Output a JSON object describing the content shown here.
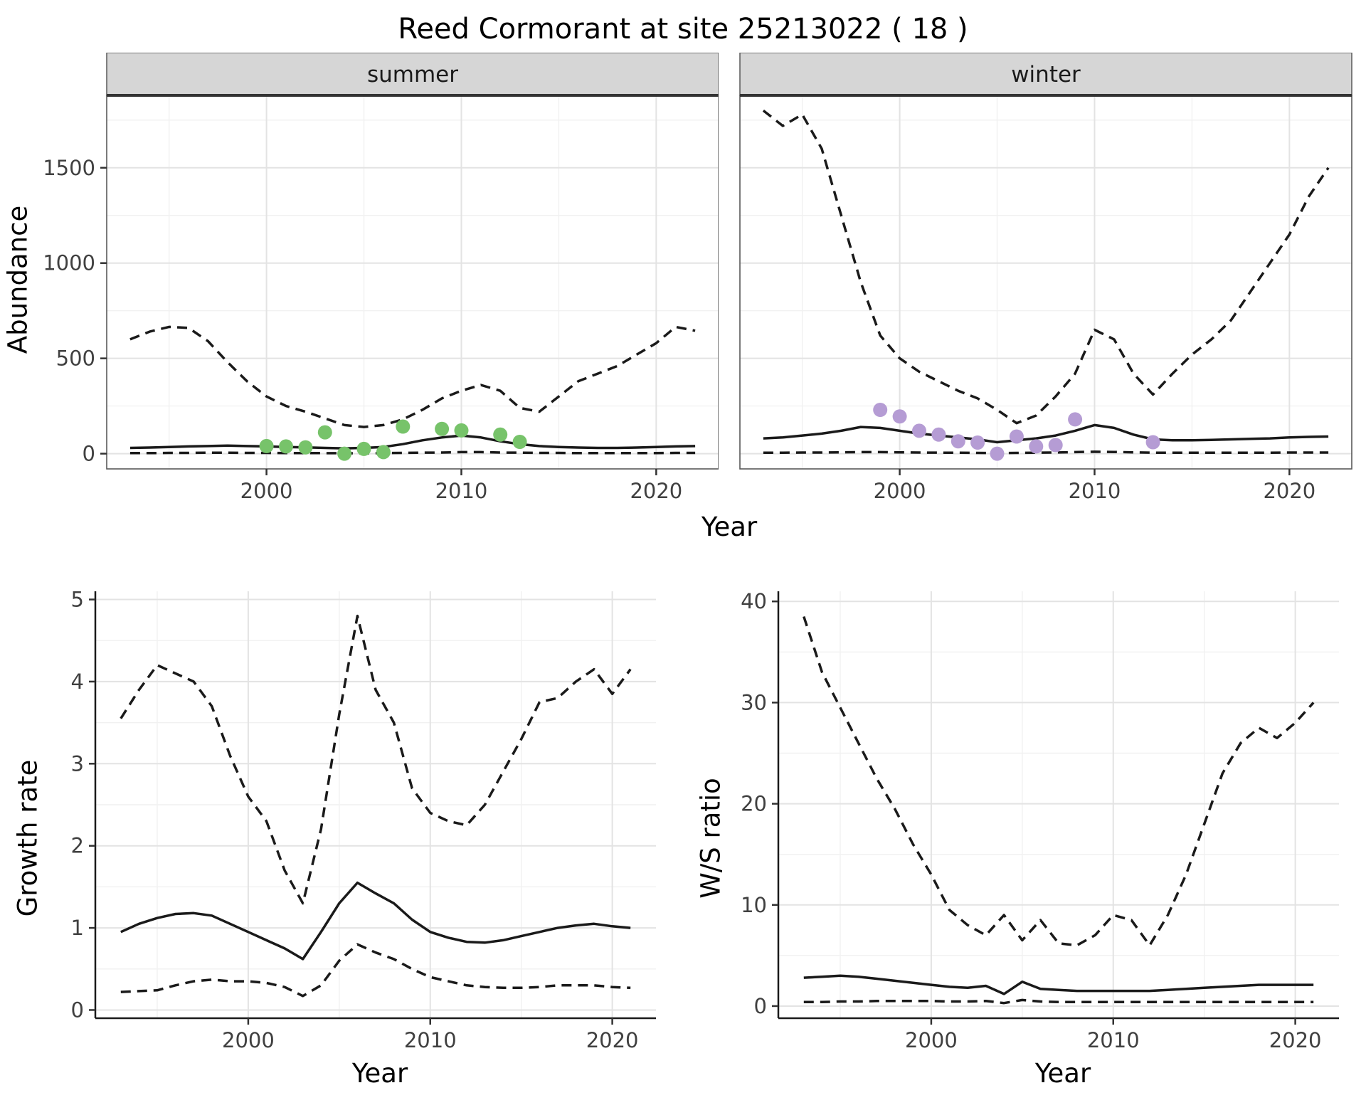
{
  "title": "Reed Cormorant at site 25213022 ( 18 )",
  "colors": {
    "background": "#ffffff",
    "line": "#1a1a1a",
    "summer_points": "#77c36a",
    "winter_points": "#b59cd4",
    "strip_bg": "#d6d6d6",
    "strip_border": "#595959",
    "strip_underline": "#333333",
    "panel_border": "#595959",
    "axis_line": "#1a1a1a",
    "grid_major": "#e3e3e3",
    "grid_minor": "#f1f1f1",
    "tick_mark": "#333333",
    "tick_label": "#404040"
  },
  "chart_data": [
    {
      "id": "abundance-summer",
      "type": "line",
      "facet_label": "summer",
      "xlabel": "Year",
      "ylabel": "Abundance",
      "xlim": [
        1991.8,
        2023.2
      ],
      "ylim": [
        -80,
        1880
      ],
      "xticks": [
        2000,
        2010,
        2020
      ],
      "yticks": [
        0,
        500,
        1000,
        1500
      ],
      "grid": true,
      "x": [
        1993,
        1994,
        1995,
        1996,
        1997,
        1998,
        1999,
        2000,
        2001,
        2002,
        2003,
        2004,
        2005,
        2006,
        2007,
        2008,
        2009,
        2010,
        2011,
        2012,
        2013,
        2014,
        2015,
        2016,
        2017,
        2018,
        2019,
        2020,
        2021,
        2022
      ],
      "series": [
        {
          "name": "upper-ci",
          "style": "dashed",
          "y": [
            600,
            640,
            665,
            660,
            590,
            480,
            380,
            300,
            250,
            220,
            185,
            150,
            140,
            150,
            180,
            230,
            290,
            330,
            360,
            330,
            240,
            220,
            300,
            380,
            420,
            460,
            520,
            580,
            665,
            645
          ]
        },
        {
          "name": "median",
          "style": "solid",
          "y": [
            30,
            32,
            35,
            38,
            40,
            42,
            40,
            38,
            35,
            33,
            30,
            28,
            30,
            35,
            50,
            70,
            85,
            95,
            85,
            65,
            50,
            40,
            35,
            32,
            30,
            30,
            32,
            35,
            38,
            40
          ]
        },
        {
          "name": "lower-ci",
          "style": "dashed",
          "y": [
            3,
            3,
            4,
            4,
            5,
            5,
            4,
            4,
            3,
            3,
            3,
            2,
            2,
            3,
            4,
            5,
            6,
            8,
            8,
            6,
            5,
            4,
            4,
            3,
            3,
            3,
            3,
            3,
            4,
            4
          ]
        }
      ],
      "points": {
        "name": "observed-counts",
        "color_key": "summer_points",
        "x": [
          2000,
          2001,
          2002,
          2003,
          2004,
          2005,
          2006,
          2007,
          2009,
          2010,
          2012,
          2013
        ],
        "y": [
          40,
          38,
          33,
          112,
          0,
          25,
          8,
          142,
          130,
          122,
          100,
          62
        ]
      }
    },
    {
      "id": "abundance-winter",
      "type": "line",
      "facet_label": "winter",
      "xlabel": "Year",
      "ylabel": "Abundance",
      "xlim": [
        1991.8,
        2023.2
      ],
      "ylim": [
        -80,
        1880
      ],
      "xticks": [
        2000,
        2010,
        2020
      ],
      "yticks": [
        0,
        500,
        1000,
        1500
      ],
      "grid": true,
      "x": [
        1993,
        1994,
        1995,
        1996,
        1997,
        1998,
        1999,
        2000,
        2001,
        2002,
        2003,
        2004,
        2005,
        2006,
        2007,
        2008,
        2009,
        2010,
        2011,
        2012,
        2013,
        2014,
        2015,
        2016,
        2017,
        2018,
        2019,
        2020,
        2021,
        2022
      ],
      "series": [
        {
          "name": "upper-ci",
          "style": "dashed",
          "y": [
            1800,
            1720,
            1780,
            1600,
            1250,
            900,
            620,
            500,
            430,
            380,
            330,
            290,
            230,
            160,
            200,
            300,
            420,
            650,
            600,
            420,
            310,
            420,
            520,
            600,
            700,
            850,
            1000,
            1150,
            1350,
            1500
          ]
        },
        {
          "name": "median",
          "style": "solid",
          "y": [
            80,
            85,
            95,
            105,
            120,
            140,
            135,
            120,
            105,
            95,
            85,
            75,
            60,
            70,
            80,
            95,
            120,
            150,
            135,
            100,
            75,
            70,
            70,
            72,
            75,
            78,
            80,
            85,
            88,
            90
          ]
        },
        {
          "name": "lower-ci",
          "style": "dashed",
          "y": [
            5,
            5,
            6,
            6,
            7,
            8,
            8,
            7,
            6,
            5,
            5,
            4,
            3,
            4,
            5,
            6,
            8,
            10,
            9,
            7,
            5,
            5,
            5,
            5,
            5,
            5,
            5,
            6,
            6,
            6
          ]
        }
      ],
      "points": {
        "name": "observed-counts",
        "color_key": "winter_points",
        "x": [
          1999,
          2000,
          2001,
          2002,
          2003,
          2004,
          2005,
          2006,
          2007,
          2008,
          2009,
          2013
        ],
        "y": [
          230,
          195,
          120,
          100,
          65,
          58,
          0,
          90,
          38,
          45,
          180,
          60
        ]
      }
    },
    {
      "id": "growth-rate",
      "type": "line",
      "xlabel": "Year",
      "ylabel": "Growth rate",
      "xlim": [
        1991.6,
        2022.4
      ],
      "ylim": [
        -0.1,
        5.1
      ],
      "xticks": [
        2000,
        2010,
        2020
      ],
      "yticks": [
        0,
        1,
        2,
        3,
        4,
        5
      ],
      "grid": true,
      "x": [
        1993,
        1994,
        1995,
        1996,
        1997,
        1998,
        1999,
        2000,
        2001,
        2002,
        2003,
        2004,
        2005,
        2006,
        2007,
        2008,
        2009,
        2010,
        2011,
        2012,
        2013,
        2014,
        2015,
        2016,
        2017,
        2018,
        2019,
        2020,
        2021
      ],
      "series": [
        {
          "name": "upper-ci",
          "style": "dashed",
          "y": [
            3.55,
            3.9,
            4.2,
            4.1,
            4.0,
            3.7,
            3.1,
            2.6,
            2.3,
            1.7,
            1.3,
            2.2,
            3.6,
            4.8,
            3.9,
            3.5,
            2.7,
            2.4,
            2.3,
            2.25,
            2.5,
            2.9,
            3.3,
            3.75,
            3.8,
            4.0,
            4.15,
            3.85,
            4.15
          ]
        },
        {
          "name": "median",
          "style": "solid",
          "y": [
            0.95,
            1.05,
            1.12,
            1.17,
            1.18,
            1.15,
            1.05,
            0.95,
            0.85,
            0.75,
            0.62,
            0.95,
            1.3,
            1.55,
            1.42,
            1.3,
            1.1,
            0.95,
            0.88,
            0.83,
            0.82,
            0.85,
            0.9,
            0.95,
            1.0,
            1.03,
            1.05,
            1.02,
            1.0
          ]
        },
        {
          "name": "lower-ci",
          "style": "dashed",
          "y": [
            0.22,
            0.23,
            0.24,
            0.3,
            0.35,
            0.37,
            0.35,
            0.35,
            0.33,
            0.28,
            0.17,
            0.3,
            0.6,
            0.8,
            0.7,
            0.62,
            0.5,
            0.4,
            0.35,
            0.3,
            0.28,
            0.27,
            0.27,
            0.28,
            0.3,
            0.3,
            0.3,
            0.28,
            0.27
          ]
        }
      ]
    },
    {
      "id": "ws-ratio",
      "type": "line",
      "xlabel": "Year",
      "ylabel": "W/S ratio",
      "xlim": [
        1991.6,
        2022.4
      ],
      "ylim": [
        -1.2,
        41
      ],
      "xticks": [
        2000,
        2010,
        2020
      ],
      "yticks": [
        0,
        10,
        20,
        30,
        40
      ],
      "grid": true,
      "x": [
        1993,
        1994,
        1995,
        1996,
        1997,
        1998,
        1999,
        2000,
        2001,
        2002,
        2003,
        2004,
        2005,
        2006,
        2007,
        2008,
        2009,
        2010,
        2011,
        2012,
        2013,
        2014,
        2015,
        2016,
        2017,
        2018,
        2019,
        2020,
        2021
      ],
      "series": [
        {
          "name": "upper-ci",
          "style": "dashed",
          "y": [
            38.5,
            33,
            29.5,
            26,
            22.5,
            19.5,
            16,
            13,
            9.5,
            8,
            7,
            9,
            6.5,
            8.5,
            6.2,
            6,
            7,
            9,
            8.5,
            6,
            9,
            13,
            18,
            23,
            26,
            27.5,
            26.5,
            28,
            30
          ]
        },
        {
          "name": "median",
          "style": "solid",
          "y": [
            2.8,
            2.9,
            3.0,
            2.9,
            2.7,
            2.5,
            2.3,
            2.1,
            1.9,
            1.8,
            2.0,
            1.2,
            2.4,
            1.7,
            1.6,
            1.5,
            1.5,
            1.5,
            1.5,
            1.5,
            1.6,
            1.7,
            1.8,
            1.9,
            2.0,
            2.1,
            2.1,
            2.1,
            2.1
          ]
        },
        {
          "name": "lower-ci",
          "style": "dashed",
          "y": [
            0.4,
            0.4,
            0.45,
            0.45,
            0.5,
            0.5,
            0.5,
            0.5,
            0.45,
            0.45,
            0.5,
            0.3,
            0.6,
            0.45,
            0.4,
            0.4,
            0.4,
            0.4,
            0.4,
            0.4,
            0.4,
            0.4,
            0.4,
            0.4,
            0.4,
            0.4,
            0.4,
            0.4,
            0.4
          ]
        }
      ]
    }
  ]
}
